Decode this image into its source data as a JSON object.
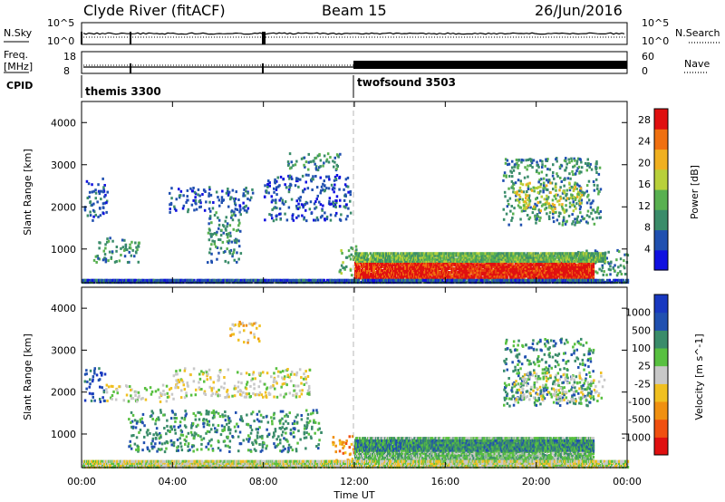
{
  "header": {
    "station": "Clyde River (fitACF)",
    "beam": "Beam 15",
    "date": "26/Jun/2016"
  },
  "top_panels": {
    "nsky_label": "N.Sky",
    "nsearch_label": "N.Search",
    "nsky_ticks": [
      "10^5",
      "10^0"
    ],
    "nsearch_ticks": [
      "10^5",
      "10^0"
    ],
    "freq_label_1": "Freq.",
    "freq_label_2": "[MHz]",
    "freq_ticks": [
      "18",
      "8"
    ],
    "nave_label": "Nave",
    "nave_ticks": [
      "60",
      "0"
    ],
    "cpid_label": "CPID",
    "cpid_segments": [
      {
        "name": "themis 3300",
        "start_hour": 0,
        "end_hour": 12
      },
      {
        "name": "twofsound 3503",
        "start_hour": 12,
        "end_hour": 24
      }
    ]
  },
  "chart_data": [
    {
      "type": "heatmap",
      "quantity": "Power",
      "ylabel": "Slant Range [km]",
      "xlabel": "Time UT",
      "xlim": [
        0,
        24
      ],
      "ylim": [
        200,
        4500
      ],
      "x_ticks": [
        "00:00",
        "04:00",
        "08:00",
        "12:00",
        "16:00",
        "20:00",
        "00:00"
      ],
      "y_ticks": [
        1000,
        2000,
        3000,
        4000
      ],
      "colorbar": {
        "label": "Power [dB]",
        "ticks": [
          4,
          8,
          12,
          16,
          20,
          24,
          28
        ],
        "range": [
          0,
          30
        ],
        "colors": [
          "#1010e0",
          "#2050b0",
          "#3a8c6a",
          "#58b050",
          "#b8d03a",
          "#f0b020",
          "#f07010",
          "#e01010"
        ]
      },
      "scatter_regions": [
        {
          "t": [
            0.1,
            1.1
          ],
          "r": [
            1700,
            2700
          ],
          "level": 1
        },
        {
          "t": [
            0.5,
            2.5
          ],
          "r": [
            700,
            1300
          ],
          "level": 2
        },
        {
          "t": [
            3.8,
            7.5
          ],
          "r": [
            1900,
            2500
          ],
          "level": 1
        },
        {
          "t": [
            5.5,
            7.0
          ],
          "r": [
            700,
            1900
          ],
          "level": 2
        },
        {
          "t": [
            8.0,
            11.8
          ],
          "r": [
            1700,
            2800
          ],
          "level": 1
        },
        {
          "t": [
            9.0,
            11.5
          ],
          "r": [
            2900,
            3300
          ],
          "level": 2
        },
        {
          "t": [
            11.3,
            12.2
          ],
          "r": [
            400,
            1100
          ],
          "level": 3
        },
        {
          "t": [
            18.5,
            22.8
          ],
          "r": [
            1600,
            3200
          ],
          "level": 2
        },
        {
          "t": [
            19.0,
            22.0
          ],
          "r": [
            1900,
            2600
          ],
          "level": 4
        },
        {
          "t": [
            21.5,
            24.0
          ],
          "r": [
            400,
            1000
          ],
          "level": 2
        }
      ],
      "bands": [
        {
          "t": [
            12.0,
            22.5
          ],
          "r": [
            300,
            700
          ],
          "level": 7
        },
        {
          "t": [
            12.0,
            23.0
          ],
          "r": [
            700,
            900
          ],
          "level": 3
        },
        {
          "t": [
            0.0,
            24.0
          ],
          "r": [
            200,
            290
          ],
          "level": 1
        }
      ]
    },
    {
      "type": "heatmap",
      "quantity": "Velocity",
      "ylabel": "Slant Range [km]",
      "xlabel": "Time UT",
      "xlim": [
        0,
        24
      ],
      "ylim": [
        200,
        4500
      ],
      "x_ticks": [
        "00:00",
        "04:00",
        "08:00",
        "12:00",
        "16:00",
        "20:00",
        "00:00"
      ],
      "y_ticks": [
        1000,
        2000,
        3000,
        4000
      ],
      "colorbar": {
        "label": "Velocity [m s^-1]",
        "ticks": [
          "1000",
          "500",
          "100",
          "25",
          "-25",
          "-100",
          "-500",
          "-1000"
        ],
        "range": [
          -1000,
          1000
        ],
        "colors": [
          "#e01010",
          "#f05010",
          "#f09010",
          "#f0c020",
          "#c8c8c8",
          "#58c040",
          "#3a8c6a",
          "#2050b0",
          "#1838c0"
        ],
        "ground_scatter_color": "#c8c8c8"
      },
      "scatter_regions": [
        {
          "t": [
            0.1,
            1.0
          ],
          "r": [
            1800,
            2600
          ],
          "level": 7
        },
        {
          "t": [
            1.0,
            4.0
          ],
          "r": [
            1800,
            2200
          ],
          "level": 4
        },
        {
          "t": [
            4.0,
            10.0
          ],
          "r": [
            1900,
            2600
          ],
          "level": 4
        },
        {
          "t": [
            6.5,
            7.8
          ],
          "r": [
            3200,
            3700
          ],
          "level": 3
        },
        {
          "t": [
            2.0,
            10.5
          ],
          "r": [
            600,
            1600
          ],
          "level": 6
        },
        {
          "t": [
            11.0,
            12.0
          ],
          "r": [
            300,
            1000
          ],
          "level": 2
        },
        {
          "t": [
            18.5,
            22.5
          ],
          "r": [
            1700,
            3300
          ],
          "level": 6
        },
        {
          "t": [
            19.0,
            23.0
          ],
          "r": [
            1800,
            2500
          ],
          "level": 4
        }
      ],
      "bands": [
        {
          "t": [
            12.0,
            22.5
          ],
          "r": [
            300,
            900
          ],
          "level": 5
        },
        {
          "t": [
            12.0,
            22.5
          ],
          "r": [
            600,
            850
          ],
          "level": 6
        },
        {
          "t": [
            0.0,
            24.0
          ],
          "r": [
            200,
            350
          ],
          "level": 4
        }
      ]
    }
  ]
}
